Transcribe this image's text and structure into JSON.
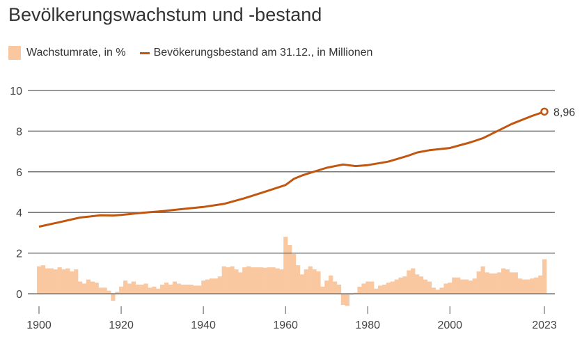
{
  "chart_data": {
    "type": "bar+line",
    "title": "Bevölkerungswachstum und -bestand",
    "legend": [
      "Wachstumrate, in %",
      "Bevökerungsbestand am 31.12., in Millionen"
    ],
    "legend_placement": "top-left",
    "colors": {
      "bar": "#f9c8a0",
      "line": "#c0560f",
      "grid": "#777777",
      "text": "#333333"
    },
    "ylim": [
      -0.8,
      10
    ],
    "yticks": [
      "0",
      "2",
      "4",
      "6",
      "8",
      "10"
    ],
    "yticks_values": [
      0,
      2,
      4,
      6,
      8,
      10
    ],
    "xlim": [
      1900,
      2023
    ],
    "xticks": [
      "1900",
      "1920",
      "1940",
      "1960",
      "1980",
      "2000",
      "2023"
    ],
    "xticks_values": [
      1900,
      1920,
      1940,
      1960,
      1980,
      2000,
      2023
    ],
    "bar_start_year": 1900,
    "growth_rate": [
      1.35,
      1.4,
      1.25,
      1.25,
      1.2,
      1.3,
      1.2,
      1.25,
      1.1,
      1.2,
      0.6,
      0.5,
      0.7,
      0.6,
      0.55,
      0.3,
      0.3,
      0.15,
      -0.35,
      0.1,
      0.35,
      0.65,
      0.5,
      0.6,
      0.45,
      0.45,
      0.5,
      0.3,
      0.35,
      0.25,
      0.45,
      0.55,
      0.45,
      0.6,
      0.5,
      0.45,
      0.45,
      0.45,
      0.4,
      0.4,
      0.65,
      0.7,
      0.75,
      0.75,
      0.85,
      1.35,
      1.3,
      1.35,
      1.2,
      1.05,
      1.3,
      1.35,
      1.3,
      1.3,
      1.3,
      1.28,
      1.3,
      1.3,
      1.25,
      1.2,
      2.8,
      2.4,
      1.95,
      1.4,
      0.95,
      1.2,
      1.35,
      1.2,
      1.1,
      0.35,
      0.65,
      0.9,
      0.6,
      0.45,
      -0.55,
      -0.6,
      -0.05,
      0.05,
      0.35,
      0.5,
      0.6,
      0.6,
      0.25,
      0.4,
      0.45,
      0.55,
      0.6,
      0.7,
      0.8,
      0.85,
      1.15,
      1.25,
      0.95,
      0.85,
      0.7,
      0.6,
      0.3,
      0.2,
      0.3,
      0.5,
      0.55,
      0.8,
      0.8,
      0.7,
      0.7,
      0.65,
      0.75,
      1.1,
      1.35,
      1.05,
      1.0,
      1.0,
      1.05,
      1.25,
      1.2,
      1.05,
      1.05,
      0.75,
      0.7,
      0.7,
      0.75,
      0.8,
      0.9,
      1.7
    ],
    "population": {
      "years": [
        1900,
        1905,
        1910,
        1915,
        1918,
        1920,
        1925,
        1930,
        1935,
        1940,
        1945,
        1950,
        1955,
        1960,
        1962,
        1964,
        1966,
        1970,
        1974,
        1977,
        1980,
        1985,
        1990,
        1992,
        1995,
        2000,
        2005,
        2008,
        2010,
        2015,
        2020,
        2023
      ],
      "values": [
        3.3,
        3.52,
        3.75,
        3.86,
        3.85,
        3.88,
        3.98,
        4.06,
        4.17,
        4.27,
        4.42,
        4.7,
        5.02,
        5.35,
        5.65,
        5.82,
        5.95,
        6.2,
        6.36,
        6.28,
        6.33,
        6.5,
        6.8,
        6.95,
        7.06,
        7.17,
        7.45,
        7.65,
        7.85,
        8.35,
        8.75,
        8.96
      ]
    },
    "annotation": "8,96"
  }
}
